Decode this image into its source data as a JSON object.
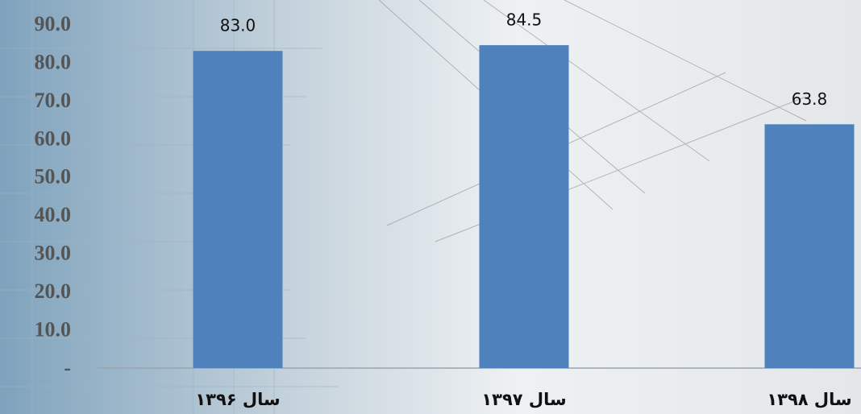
{
  "chart_data": {
    "type": "bar",
    "categories": [
      "سال ۱۳۹۶",
      "سال ۱۳۹۷",
      "سال ۱۳۹۸"
    ],
    "values": [
      83.0,
      84.5,
      63.8
    ],
    "value_labels": [
      "83.0",
      "84.5",
      "63.8"
    ],
    "color": "#4f81bd",
    "ylim": [
      0,
      90
    ],
    "yticks": [
      {
        "value": 0,
        "label": "-"
      },
      {
        "value": 10,
        "label": "10.0"
      },
      {
        "value": 20,
        "label": "20.0"
      },
      {
        "value": 30,
        "label": "30.0"
      },
      {
        "value": 40,
        "label": "40.0"
      },
      {
        "value": 50,
        "label": "50.0"
      },
      {
        "value": 60,
        "label": "60.0"
      },
      {
        "value": 70,
        "label": "70.0"
      },
      {
        "value": 80,
        "label": "80.0"
      },
      {
        "value": 90,
        "label": "90.0"
      }
    ],
    "grid": false
  }
}
